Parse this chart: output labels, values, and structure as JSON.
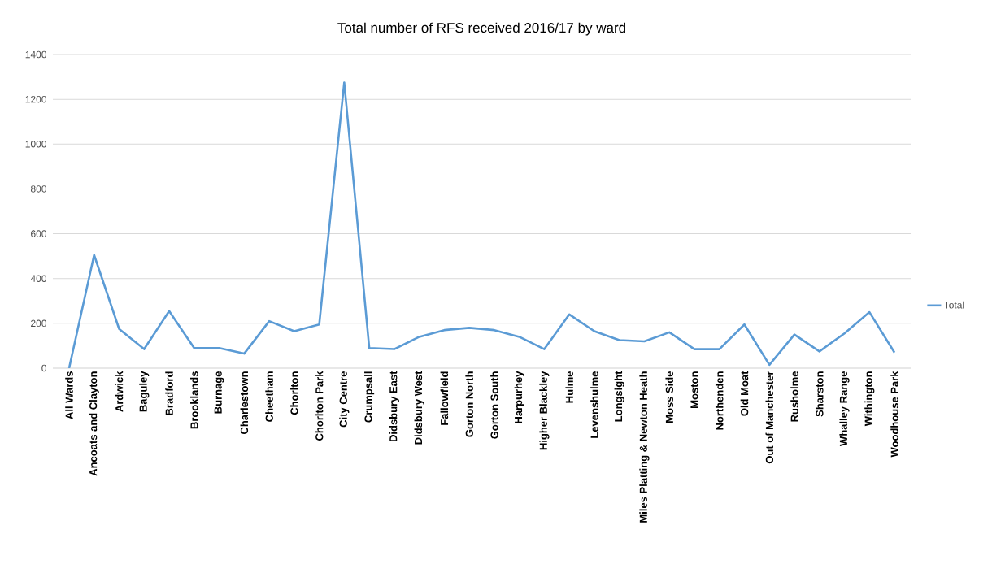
{
  "chart_data": {
    "type": "line",
    "title": "Total number of RFS received 2016/17 by ward",
    "categories": [
      "All Wards",
      "Ancoats and Clayton",
      "Ardwick",
      "Baguley",
      "Bradford",
      "Brooklands",
      "Burnage",
      "Charlestown",
      "Cheetham",
      "Chorlton",
      "Chorlton Park",
      "City Centre",
      "Crumpsall",
      "Didsbury East",
      "Didsbury West",
      "Fallowfield",
      "Gorton North",
      "Gorton South",
      "Harpurhey",
      "Higher Blackley",
      "Hulme",
      "Levenshulme",
      "Longsight",
      "Miles Platting & Newton Heath",
      "Moss Side",
      "Moston",
      "Northenden",
      "Old Moat",
      "Out of Manchester",
      "Rusholme",
      "Sharston",
      "Whalley Range",
      "Withington",
      "Woodhouse Park"
    ],
    "series": [
      {
        "name": "Total",
        "color": "#5b9bd5",
        "values": [
          0,
          505,
          175,
          85,
          255,
          90,
          90,
          65,
          210,
          165,
          195,
          1275,
          90,
          85,
          140,
          170,
          180,
          170,
          140,
          85,
          240,
          165,
          125,
          120,
          160,
          85,
          85,
          195,
          15,
          150,
          75,
          155,
          250,
          70
        ]
      }
    ],
    "ylim": [
      0,
      1400
    ],
    "yticks": [
      0,
      200,
      400,
      600,
      800,
      1000,
      1200,
      1400
    ],
    "grid": "y",
    "legend": "right",
    "marker": "none",
    "line_style": "solid"
  }
}
